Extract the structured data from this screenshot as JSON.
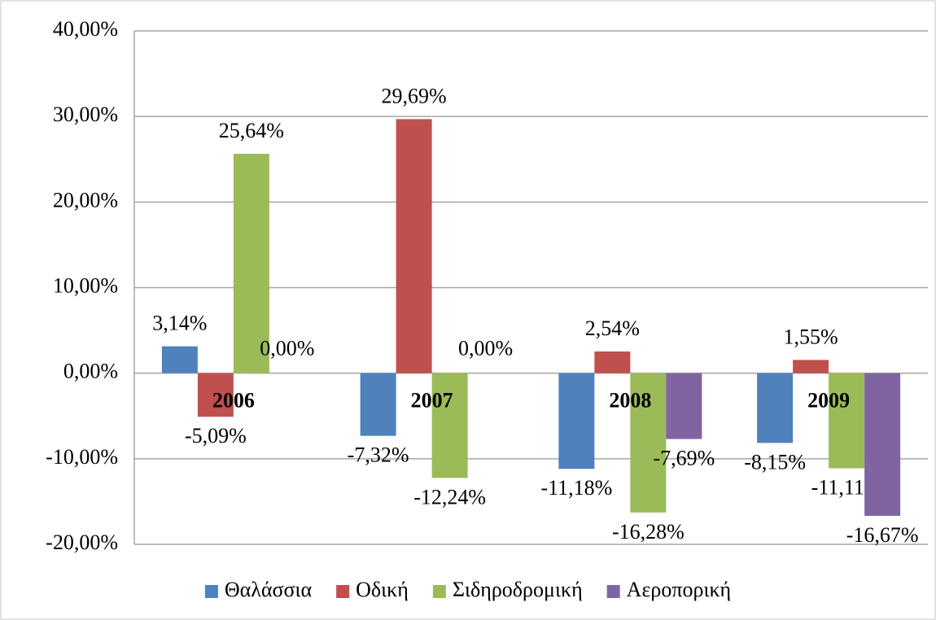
{
  "chart_data": {
    "type": "bar",
    "categories": [
      "2006",
      "2007",
      "2008",
      "2009"
    ],
    "series": [
      {
        "name": "Θαλάσσια",
        "color": "#4f81bd",
        "values": [
          3.14,
          -7.32,
          -11.18,
          -8.15
        ],
        "value_labels": [
          "3,14%",
          "-7,32%",
          "-11,18%",
          "-8,15%"
        ]
      },
      {
        "name": "Οδική",
        "color": "#c0504d",
        "values": [
          -5.09,
          29.69,
          2.54,
          1.55
        ],
        "value_labels": [
          "-5,09%",
          "29,69%",
          "2,54%",
          "1,55%"
        ]
      },
      {
        "name": "Σιδηροδρομική",
        "color": "#9bbb59",
        "values": [
          25.64,
          -12.24,
          -16.28,
          -11.11
        ],
        "value_labels": [
          "25,64%",
          "-12,24%",
          "-16,28%",
          "-11,11%"
        ]
      },
      {
        "name": "Αεροπορική",
        "color": "#8064a2",
        "values": [
          0,
          0,
          -7.69,
          -16.67
        ],
        "value_labels": [
          "0,00%",
          "0,00%",
          "-7,69%",
          "-16,67%"
        ]
      }
    ],
    "ylim": [
      -20,
      40
    ],
    "yticks": [
      {
        "value": -20,
        "label": "-20,00%"
      },
      {
        "value": -10,
        "label": "-10,00%"
      },
      {
        "value": 0,
        "label": "0,00%"
      },
      {
        "value": 10,
        "label": "10,00%"
      },
      {
        "value": 20,
        "label": "20,00%"
      },
      {
        "value": 30,
        "label": "30,00%"
      },
      {
        "value": 40,
        "label": "40,00%"
      }
    ],
    "grid": true,
    "legend": "bottom"
  }
}
